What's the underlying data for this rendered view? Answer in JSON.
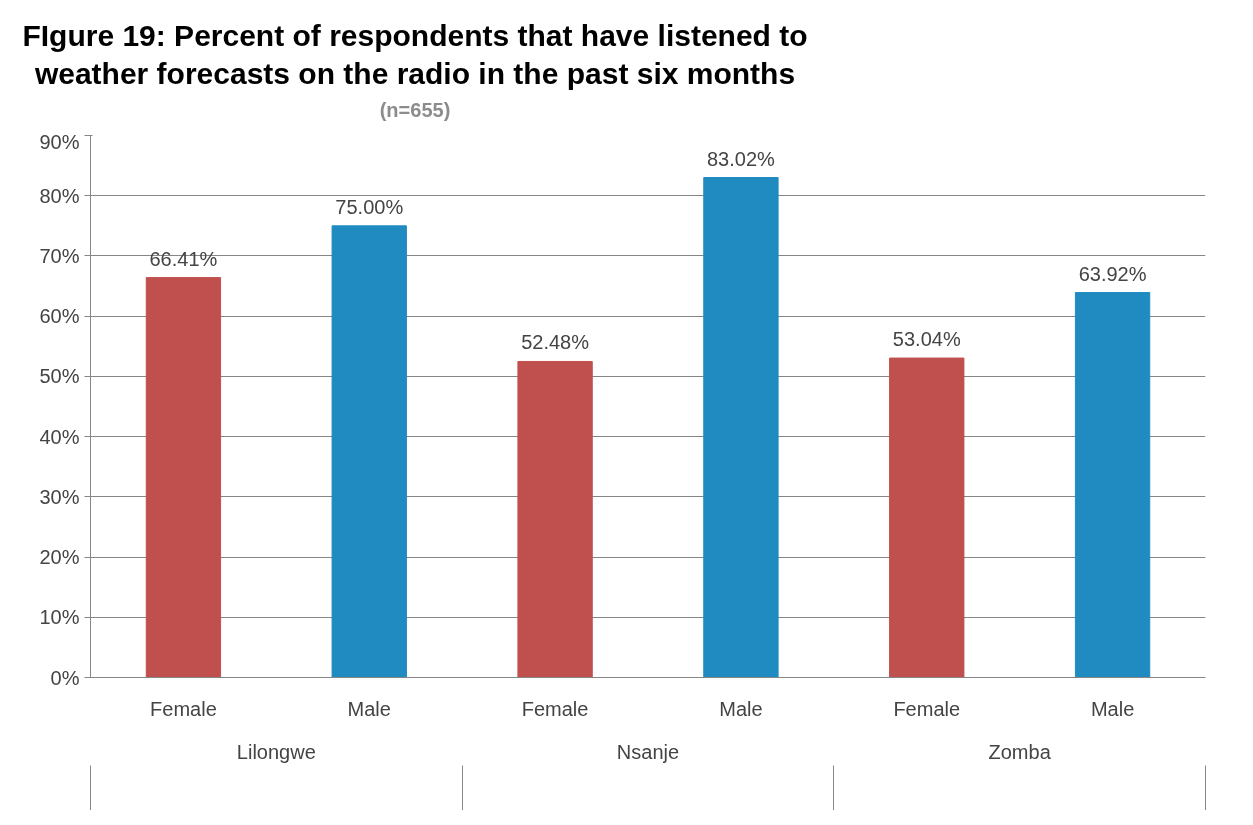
{
  "chart_data": {
    "type": "bar",
    "title": "FIgure 19: Percent of respondents that have listened to weather forecasts on the radio in the past six months",
    "subtitle": "(n=655)",
    "categories": [
      "Female",
      "Male",
      "Female",
      "Male",
      "Female",
      "Male"
    ],
    "values": [
      66.41,
      75.0,
      52.48,
      83.02,
      53.04,
      63.92
    ],
    "value_labels": [
      "66.41%",
      "75.00%",
      "52.48%",
      "83.02%",
      "53.04%",
      "63.92%"
    ],
    "colors": [
      "#c0504d",
      "#1f8bc0",
      "#c0504d",
      "#1f8bc0",
      "#c0504d",
      "#1f8bc0"
    ],
    "annotations": [
      "Lilongwe",
      "Nsanje",
      "Zomba"
    ],
    "ylim": [
      0,
      90
    ],
    "yticks": [
      {
        "value": 0,
        "label": "0%"
      },
      {
        "value": 10,
        "label": "10%"
      },
      {
        "value": 20,
        "label": "20%"
      },
      {
        "value": 30,
        "label": "30%"
      },
      {
        "value": 40,
        "label": "40%"
      },
      {
        "value": 50,
        "label": "50%"
      },
      {
        "value": 60,
        "label": "60%"
      },
      {
        "value": 70,
        "label": "70%"
      },
      {
        "value": 80,
        "label": "80%"
      },
      {
        "value": 90,
        "label": "90%"
      }
    ],
    "grid": "y"
  }
}
